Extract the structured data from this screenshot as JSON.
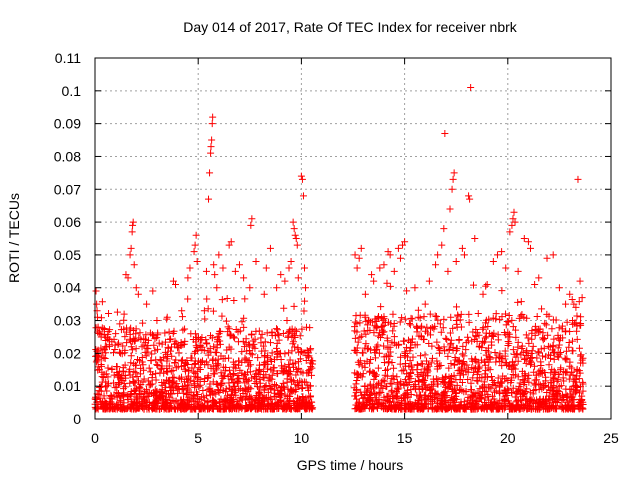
{
  "chart_data": {
    "type": "scatter",
    "title": "Day 014 of 2017, Rate Of TEC Index for receiver nbrk",
    "xlabel": "GPS time / hours",
    "ylabel": "ROTI / TECUs",
    "xlim": [
      0,
      25
    ],
    "ylim": [
      0,
      0.11
    ],
    "x_ticks": [
      "0",
      "5",
      "10",
      "15",
      "20",
      "25"
    ],
    "y_ticks": [
      "0",
      "0.01",
      "0.02",
      "0.03",
      "0.04",
      "0.05",
      "0.06",
      "0.07",
      "0.08",
      "0.09",
      "0.1",
      "0.11"
    ],
    "grid": true,
    "marker": "+",
    "color": "#ff0000",
    "data_gap_hours": [
      10.6,
      12.4
    ],
    "series": [
      {
        "points": [
          [
            0.05,
            0.039
          ],
          [
            0.08,
            0.035
          ],
          [
            0.1,
            0.033
          ],
          [
            0.12,
            0.031
          ],
          [
            0.15,
            0.028
          ],
          [
            0.3,
            0.025
          ],
          [
            0.5,
            0.022
          ],
          [
            1.0,
            0.026
          ],
          [
            1.2,
            0.029
          ],
          [
            1.5,
            0.044
          ],
          [
            1.6,
            0.043
          ],
          [
            1.7,
            0.05
          ],
          [
            1.75,
            0.052
          ],
          [
            1.8,
            0.057
          ],
          [
            1.82,
            0.059
          ],
          [
            1.85,
            0.06
          ],
          [
            1.9,
            0.047
          ],
          [
            2.0,
            0.04
          ],
          [
            2.1,
            0.038
          ],
          [
            2.5,
            0.035
          ],
          [
            2.8,
            0.039
          ],
          [
            3.0,
            0.03
          ],
          [
            3.5,
            0.031
          ],
          [
            3.8,
            0.042
          ],
          [
            3.9,
            0.041
          ],
          [
            4.2,
            0.033
          ],
          [
            4.5,
            0.043
          ],
          [
            4.6,
            0.046
          ],
          [
            4.8,
            0.051
          ],
          [
            4.85,
            0.053
          ],
          [
            4.9,
            0.056
          ],
          [
            4.95,
            0.048
          ],
          [
            5.3,
            0.033
          ],
          [
            5.4,
            0.045
          ],
          [
            5.5,
            0.067
          ],
          [
            5.55,
            0.075
          ],
          [
            5.6,
            0.081
          ],
          [
            5.62,
            0.083
          ],
          [
            5.65,
            0.085
          ],
          [
            5.68,
            0.09
          ],
          [
            5.7,
            0.092
          ],
          [
            5.75,
            0.047
          ],
          [
            5.8,
            0.044
          ],
          [
            5.9,
            0.04
          ],
          [
            6.0,
            0.05
          ],
          [
            6.2,
            0.046
          ],
          [
            6.5,
            0.053
          ],
          [
            6.6,
            0.054
          ],
          [
            6.8,
            0.045
          ],
          [
            7.0,
            0.047
          ],
          [
            7.2,
            0.043
          ],
          [
            7.5,
            0.04
          ],
          [
            7.55,
            0.059
          ],
          [
            7.6,
            0.061
          ],
          [
            7.8,
            0.048
          ],
          [
            8.2,
            0.038
          ],
          [
            8.3,
            0.046
          ],
          [
            8.5,
            0.052
          ],
          [
            8.8,
            0.04
          ],
          [
            9.0,
            0.044
          ],
          [
            9.2,
            0.042
          ],
          [
            9.4,
            0.046
          ],
          [
            9.5,
            0.048
          ],
          [
            9.6,
            0.06
          ],
          [
            9.65,
            0.058
          ],
          [
            9.7,
            0.056
          ],
          [
            9.75,
            0.055
          ],
          [
            9.8,
            0.053
          ],
          [
            9.85,
            0.043
          ],
          [
            10.0,
            0.074
          ],
          [
            10.05,
            0.073
          ],
          [
            10.1,
            0.068
          ],
          [
            10.15,
            0.046
          ],
          [
            10.2,
            0.04
          ],
          [
            12.6,
            0.05
          ],
          [
            12.7,
            0.046
          ],
          [
            12.8,
            0.049
          ],
          [
            12.9,
            0.052
          ],
          [
            13.1,
            0.038
          ],
          [
            13.4,
            0.044
          ],
          [
            13.5,
            0.042
          ],
          [
            13.8,
            0.046
          ],
          [
            14.0,
            0.047
          ],
          [
            14.2,
            0.051
          ],
          [
            14.3,
            0.05
          ],
          [
            14.5,
            0.045
          ],
          [
            14.7,
            0.052
          ],
          [
            14.8,
            0.049
          ],
          [
            14.9,
            0.053
          ],
          [
            15.0,
            0.054
          ],
          [
            15.5,
            0.04
          ],
          [
            16.0,
            0.035
          ],
          [
            16.2,
            0.042
          ],
          [
            16.5,
            0.047
          ],
          [
            16.6,
            0.05
          ],
          [
            16.8,
            0.053
          ],
          [
            16.9,
            0.058
          ],
          [
            16.95,
            0.087
          ],
          [
            17.1,
            0.045
          ],
          [
            17.2,
            0.064
          ],
          [
            17.3,
            0.07
          ],
          [
            17.35,
            0.073
          ],
          [
            17.4,
            0.075
          ],
          [
            17.5,
            0.048
          ],
          [
            17.8,
            0.052
          ],
          [
            17.9,
            0.05
          ],
          [
            18.1,
            0.068
          ],
          [
            18.15,
            0.067
          ],
          [
            18.2,
            0.101
          ],
          [
            18.4,
            0.055
          ],
          [
            18.8,
            0.038
          ],
          [
            19.0,
            0.041
          ],
          [
            19.3,
            0.048
          ],
          [
            19.5,
            0.05
          ],
          [
            19.7,
            0.051
          ],
          [
            19.9,
            0.046
          ],
          [
            20.1,
            0.057
          ],
          [
            20.2,
            0.059
          ],
          [
            20.25,
            0.061
          ],
          [
            20.3,
            0.063
          ],
          [
            20.35,
            0.06
          ],
          [
            20.5,
            0.045
          ],
          [
            20.8,
            0.055
          ],
          [
            21.0,
            0.054
          ],
          [
            21.1,
            0.052
          ],
          [
            21.3,
            0.041
          ],
          [
            21.5,
            0.043
          ],
          [
            21.9,
            0.049
          ],
          [
            22.2,
            0.05
          ],
          [
            22.5,
            0.04
          ],
          [
            22.8,
            0.035
          ],
          [
            23.0,
            0.038
          ],
          [
            23.2,
            0.035
          ],
          [
            23.3,
            0.034
          ],
          [
            23.4,
            0.073
          ],
          [
            23.5,
            0.042
          ],
          [
            23.6,
            0.037
          ]
        ]
      }
    ],
    "baseline_bands": [
      {
        "x": [
          0,
          10.55
        ],
        "y": [
          0.003,
          0.028
        ]
      },
      {
        "x": [
          12.55,
          23.65
        ],
        "y": [
          0.003,
          0.032
        ]
      }
    ]
  }
}
